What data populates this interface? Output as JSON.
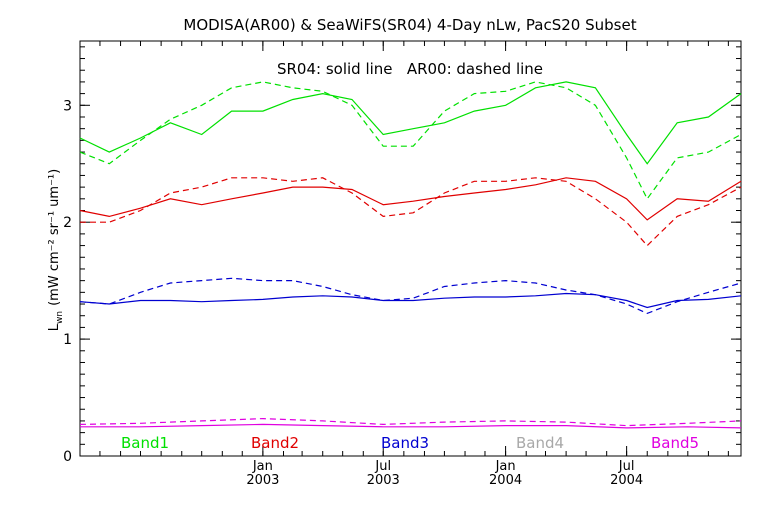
{
  "chart_data": {
    "type": "line",
    "title": "MODISA(AR00) & SeaWiFS(SR04) 4-Day nLw, PacS20 Subset",
    "annotation": "SR04: solid line   AR00: dashed line",
    "ylabel": "L",
    "ylabel_sub": "wn",
    "ylabel_units": "(mW cm⁻² sr⁻¹ um⁻¹)",
    "ylim": [
      0,
      3.55
    ],
    "xlim": [
      "2002-04-01",
      "2004-12-20"
    ],
    "y_ticks": [
      {
        "value": 0,
        "label": "0"
      },
      {
        "value": 1,
        "label": "1"
      },
      {
        "value": 2,
        "label": "2"
      },
      {
        "value": 3,
        "label": "3"
      }
    ],
    "x_ticks": [
      {
        "date": "2003-01-01",
        "month": "Jan",
        "year": "2003"
      },
      {
        "date": "2003-07-01",
        "month": "Jul",
        "year": "2003"
      },
      {
        "date": "2004-01-01",
        "month": "Jan",
        "year": "2004"
      },
      {
        "date": "2004-07-01",
        "month": "Jul",
        "year": "2004"
      }
    ],
    "legend": [
      {
        "label": "Band1",
        "color": "#00e000"
      },
      {
        "label": "Band2",
        "color": "#e00000"
      },
      {
        "label": "Band3",
        "color": "#0000d0"
      },
      {
        "label": "Band4",
        "color": "#a8a8a8"
      },
      {
        "label": "Band5",
        "color": "#e000e0"
      }
    ],
    "series": [
      {
        "band": "Band1",
        "style": "solid",
        "color": "#00e000",
        "points": [
          [
            "2002-04-01",
            2.72
          ],
          [
            "2002-05-15",
            2.6
          ],
          [
            "2002-07-01",
            2.72
          ],
          [
            "2002-08-15",
            2.85
          ],
          [
            "2002-10-01",
            2.75
          ],
          [
            "2002-11-15",
            2.95
          ],
          [
            "2003-01-01",
            2.95
          ],
          [
            "2003-02-15",
            3.05
          ],
          [
            "2003-04-01",
            3.1
          ],
          [
            "2003-05-15",
            3.05
          ],
          [
            "2003-07-01",
            2.75
          ],
          [
            "2003-08-15",
            2.8
          ],
          [
            "2003-10-01",
            2.85
          ],
          [
            "2003-11-15",
            2.95
          ],
          [
            "2004-01-01",
            3.0
          ],
          [
            "2004-02-15",
            3.15
          ],
          [
            "2004-04-01",
            3.2
          ],
          [
            "2004-05-15",
            3.15
          ],
          [
            "2004-07-01",
            2.75
          ],
          [
            "2004-08-01",
            2.5
          ],
          [
            "2004-09-15",
            2.85
          ],
          [
            "2004-11-01",
            2.9
          ],
          [
            "2004-12-20",
            3.1
          ]
        ]
      },
      {
        "band": "Band1",
        "style": "dashed",
        "color": "#00e000",
        "points": [
          [
            "2002-04-01",
            2.6
          ],
          [
            "2002-05-15",
            2.5
          ],
          [
            "2002-07-01",
            2.7
          ],
          [
            "2002-08-15",
            2.88
          ],
          [
            "2002-10-01",
            3.0
          ],
          [
            "2002-11-15",
            3.15
          ],
          [
            "2003-01-01",
            3.2
          ],
          [
            "2003-02-15",
            3.15
          ],
          [
            "2003-04-01",
            3.12
          ],
          [
            "2003-05-15",
            3.0
          ],
          [
            "2003-07-01",
            2.65
          ],
          [
            "2003-08-15",
            2.65
          ],
          [
            "2003-10-01",
            2.95
          ],
          [
            "2003-11-15",
            3.1
          ],
          [
            "2004-01-01",
            3.12
          ],
          [
            "2004-02-15",
            3.2
          ],
          [
            "2004-04-01",
            3.15
          ],
          [
            "2004-05-15",
            3.0
          ],
          [
            "2004-07-01",
            2.55
          ],
          [
            "2004-08-01",
            2.2
          ],
          [
            "2004-09-15",
            2.55
          ],
          [
            "2004-11-01",
            2.6
          ],
          [
            "2004-12-20",
            2.75
          ]
        ]
      },
      {
        "band": "Band2",
        "style": "solid",
        "color": "#e00000",
        "points": [
          [
            "2002-04-01",
            2.1
          ],
          [
            "2002-05-15",
            2.05
          ],
          [
            "2002-07-01",
            2.12
          ],
          [
            "2002-08-15",
            2.2
          ],
          [
            "2002-10-01",
            2.15
          ],
          [
            "2002-11-15",
            2.2
          ],
          [
            "2003-01-01",
            2.25
          ],
          [
            "2003-02-15",
            2.3
          ],
          [
            "2003-04-01",
            2.3
          ],
          [
            "2003-05-15",
            2.28
          ],
          [
            "2003-07-01",
            2.15
          ],
          [
            "2003-08-15",
            2.18
          ],
          [
            "2003-10-01",
            2.22
          ],
          [
            "2003-11-15",
            2.25
          ],
          [
            "2004-01-01",
            2.28
          ],
          [
            "2004-02-15",
            2.32
          ],
          [
            "2004-04-01",
            2.38
          ],
          [
            "2004-05-15",
            2.35
          ],
          [
            "2004-07-01",
            2.2
          ],
          [
            "2004-08-01",
            2.02
          ],
          [
            "2004-09-15",
            2.2
          ],
          [
            "2004-11-01",
            2.18
          ],
          [
            "2004-12-20",
            2.35
          ]
        ]
      },
      {
        "band": "Band2",
        "style": "dashed",
        "color": "#e00000",
        "points": [
          [
            "2002-04-01",
            2.0
          ],
          [
            "2002-05-15",
            2.0
          ],
          [
            "2002-07-01",
            2.1
          ],
          [
            "2002-08-15",
            2.25
          ],
          [
            "2002-10-01",
            2.3
          ],
          [
            "2002-11-15",
            2.38
          ],
          [
            "2003-01-01",
            2.38
          ],
          [
            "2003-02-15",
            2.35
          ],
          [
            "2003-04-01",
            2.38
          ],
          [
            "2003-05-15",
            2.25
          ],
          [
            "2003-07-01",
            2.05
          ],
          [
            "2003-08-15",
            2.08
          ],
          [
            "2003-10-01",
            2.25
          ],
          [
            "2003-11-15",
            2.35
          ],
          [
            "2004-01-01",
            2.35
          ],
          [
            "2004-02-15",
            2.38
          ],
          [
            "2004-04-01",
            2.35
          ],
          [
            "2004-05-15",
            2.2
          ],
          [
            "2004-07-01",
            2.0
          ],
          [
            "2004-08-01",
            1.8
          ],
          [
            "2004-09-15",
            2.05
          ],
          [
            "2004-11-01",
            2.15
          ],
          [
            "2004-12-20",
            2.3
          ]
        ]
      },
      {
        "band": "Band3",
        "style": "solid",
        "color": "#0000d0",
        "points": [
          [
            "2002-04-01",
            1.32
          ],
          [
            "2002-05-15",
            1.3
          ],
          [
            "2002-07-01",
            1.33
          ],
          [
            "2002-08-15",
            1.33
          ],
          [
            "2002-10-01",
            1.32
          ],
          [
            "2002-11-15",
            1.33
          ],
          [
            "2003-01-01",
            1.34
          ],
          [
            "2003-02-15",
            1.36
          ],
          [
            "2003-04-01",
            1.37
          ],
          [
            "2003-05-15",
            1.36
          ],
          [
            "2003-07-01",
            1.33
          ],
          [
            "2003-08-15",
            1.33
          ],
          [
            "2003-10-01",
            1.35
          ],
          [
            "2003-11-15",
            1.36
          ],
          [
            "2004-01-01",
            1.36
          ],
          [
            "2004-02-15",
            1.37
          ],
          [
            "2004-04-01",
            1.39
          ],
          [
            "2004-05-15",
            1.38
          ],
          [
            "2004-07-01",
            1.33
          ],
          [
            "2004-08-01",
            1.27
          ],
          [
            "2004-09-15",
            1.33
          ],
          [
            "2004-11-01",
            1.34
          ],
          [
            "2004-12-20",
            1.37
          ]
        ]
      },
      {
        "band": "Band3",
        "style": "dashed",
        "color": "#0000d0",
        "points": [
          [
            "2002-04-01",
            1.32
          ],
          [
            "2002-05-15",
            1.3
          ],
          [
            "2002-07-01",
            1.4
          ],
          [
            "2002-08-15",
            1.48
          ],
          [
            "2002-10-01",
            1.5
          ],
          [
            "2002-11-15",
            1.52
          ],
          [
            "2003-01-01",
            1.5
          ],
          [
            "2003-02-15",
            1.5
          ],
          [
            "2003-04-01",
            1.45
          ],
          [
            "2003-05-15",
            1.38
          ],
          [
            "2003-07-01",
            1.33
          ],
          [
            "2003-08-15",
            1.35
          ],
          [
            "2003-10-01",
            1.45
          ],
          [
            "2003-11-15",
            1.48
          ],
          [
            "2004-01-01",
            1.5
          ],
          [
            "2004-02-15",
            1.48
          ],
          [
            "2004-04-01",
            1.42
          ],
          [
            "2004-05-15",
            1.38
          ],
          [
            "2004-07-01",
            1.3
          ],
          [
            "2004-08-01",
            1.22
          ],
          [
            "2004-09-15",
            1.32
          ],
          [
            "2004-11-01",
            1.4
          ],
          [
            "2004-12-20",
            1.48
          ]
        ]
      },
      {
        "band": "Band5",
        "style": "solid",
        "color": "#e000e0",
        "points": [
          [
            "2002-04-01",
            0.25
          ],
          [
            "2002-07-01",
            0.25
          ],
          [
            "2002-10-01",
            0.26
          ],
          [
            "2003-01-01",
            0.27
          ],
          [
            "2003-04-01",
            0.26
          ],
          [
            "2003-07-01",
            0.25
          ],
          [
            "2003-10-01",
            0.25
          ],
          [
            "2004-01-01",
            0.26
          ],
          [
            "2004-04-01",
            0.26
          ],
          [
            "2004-07-01",
            0.24
          ],
          [
            "2004-10-01",
            0.25
          ],
          [
            "2004-12-20",
            0.24
          ]
        ]
      },
      {
        "band": "Band5",
        "style": "dashed",
        "color": "#e000e0",
        "points": [
          [
            "2002-04-01",
            0.27
          ],
          [
            "2002-07-01",
            0.28
          ],
          [
            "2002-10-01",
            0.3
          ],
          [
            "2003-01-01",
            0.32
          ],
          [
            "2003-04-01",
            0.3
          ],
          [
            "2003-07-01",
            0.27
          ],
          [
            "2003-10-01",
            0.29
          ],
          [
            "2004-01-01",
            0.3
          ],
          [
            "2004-04-01",
            0.29
          ],
          [
            "2004-07-01",
            0.26
          ],
          [
            "2004-10-01",
            0.28
          ],
          [
            "2004-12-20",
            0.3
          ]
        ]
      }
    ]
  }
}
